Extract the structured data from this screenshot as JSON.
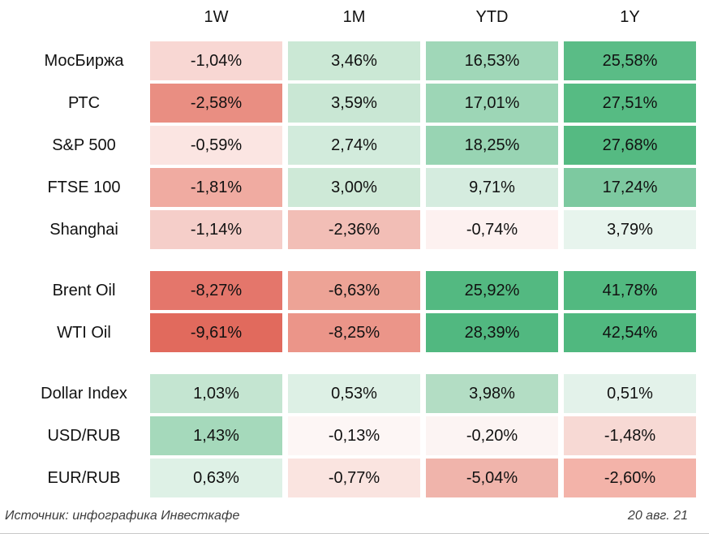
{
  "table": {
    "columns": [
      "1W",
      "1M",
      "YTD",
      "1Y"
    ],
    "groups": [
      {
        "rows": [
          {
            "label": "МосБиржа",
            "cells": [
              {
                "value": "-1,04%",
                "bg": "#f8d7d3"
              },
              {
                "value": "3,46%",
                "bg": "#cbe8d5"
              },
              {
                "value": "16,53%",
                "bg": "#a0d7b8"
              },
              {
                "value": "25,58%",
                "bg": "#5abc86"
              }
            ]
          },
          {
            "label": "РТС",
            "cells": [
              {
                "value": "-2,58%",
                "bg": "#e98e82"
              },
              {
                "value": "3,59%",
                "bg": "#c9e7d4"
              },
              {
                "value": "17,01%",
                "bg": "#9dd6b6"
              },
              {
                "value": "27,51%",
                "bg": "#56bb83"
              }
            ]
          },
          {
            "label": "S&P 500",
            "cells": [
              {
                "value": "-0,59%",
                "bg": "#fbe5e2"
              },
              {
                "value": "2,74%",
                "bg": "#d2ebdc"
              },
              {
                "value": "18,25%",
                "bg": "#98d4b3"
              },
              {
                "value": "27,68%",
                "bg": "#55ba82"
              }
            ]
          },
          {
            "label": "FTSE 100",
            "cells": [
              {
                "value": "-1,81%",
                "bg": "#f0aba1"
              },
              {
                "value": "3,00%",
                "bg": "#cee9d7"
              },
              {
                "value": "9,71%",
                "bg": "#d5ecdf"
              },
              {
                "value": "17,24%",
                "bg": "#7dc9a0"
              }
            ]
          },
          {
            "label": "Shanghai",
            "cells": [
              {
                "value": "-1,14%",
                "bg": "#f5cec9"
              },
              {
                "value": "-2,36%",
                "bg": "#f2beb6"
              },
              {
                "value": "-0,74%",
                "bg": "#fdf1f0"
              },
              {
                "value": "3,79%",
                "bg": "#e7f4ed"
              }
            ]
          }
        ]
      },
      {
        "rows": [
          {
            "label": "Brent Oil",
            "cells": [
              {
                "value": "-8,27%",
                "bg": "#e4766b"
              },
              {
                "value": "-6,63%",
                "bg": "#eda396"
              },
              {
                "value": "25,92%",
                "bg": "#53b981"
              },
              {
                "value": "41,78%",
                "bg": "#52b980"
              }
            ]
          },
          {
            "label": "WTI Oil",
            "cells": [
              {
                "value": "-9,61%",
                "bg": "#e16a5d"
              },
              {
                "value": "-8,25%",
                "bg": "#eb9589"
              },
              {
                "value": "28,39%",
                "bg": "#51b880"
              },
              {
                "value": "42,54%",
                "bg": "#50b87f"
              }
            ]
          }
        ]
      },
      {
        "rows": [
          {
            "label": "Dollar Index",
            "cells": [
              {
                "value": "1,03%",
                "bg": "#c4e5d1"
              },
              {
                "value": "0,53%",
                "bg": "#ddf0e5"
              },
              {
                "value": "3,98%",
                "bg": "#b3ddc4"
              },
              {
                "value": "0,51%",
                "bg": "#e3f2ea"
              }
            ]
          },
          {
            "label": "USD/RUB",
            "cells": [
              {
                "value": "1,43%",
                "bg": "#a5d9bb"
              },
              {
                "value": "-0,13%",
                "bg": "#fdf6f5"
              },
              {
                "value": "-0,20%",
                "bg": "#fcf4f3"
              },
              {
                "value": "-1,48%",
                "bg": "#f7d9d4"
              }
            ]
          },
          {
            "label": "EUR/RUB",
            "cells": [
              {
                "value": "0,63%",
                "bg": "#def1e6"
              },
              {
                "value": "-0,77%",
                "bg": "#fae4e0"
              },
              {
                "value": "-5,04%",
                "bg": "#f0b4ab"
              },
              {
                "value": "-2,60%",
                "bg": "#f3b3a9"
              }
            ]
          }
        ]
      }
    ]
  },
  "footer": {
    "source": "Источник: инфографика Инвесткафе",
    "date": "20 авг. 21"
  },
  "chart_data": {
    "type": "heatmap",
    "columns": [
      "1W",
      "1M",
      "YTD",
      "1Y"
    ],
    "rows": [
      "МосБиржа",
      "РТС",
      "S&P 500",
      "FTSE 100",
      "Shanghai",
      "Brent Oil",
      "WTI Oil",
      "Dollar Index",
      "USD/RUB",
      "EUR/RUB"
    ],
    "row_groups": [
      [
        "МосБиржа",
        "РТС",
        "S&P 500",
        "FTSE 100",
        "Shanghai"
      ],
      [
        "Brent Oil",
        "WTI Oil"
      ],
      [
        "Dollar Index",
        "USD/RUB",
        "EUR/RUB"
      ]
    ],
    "values_percent": [
      [
        -1.04,
        3.46,
        16.53,
        25.58
      ],
      [
        -2.58,
        3.59,
        17.01,
        27.51
      ],
      [
        -0.59,
        2.74,
        18.25,
        27.68
      ],
      [
        -1.81,
        3.0,
        9.71,
        17.24
      ],
      [
        -1.14,
        -2.36,
        -0.74,
        3.79
      ],
      [
        -8.27,
        -6.63,
        25.92,
        41.78
      ],
      [
        -9.61,
        -8.25,
        28.39,
        42.54
      ],
      [
        1.03,
        0.53,
        3.98,
        0.51
      ],
      [
        1.43,
        -0.13,
        -0.2,
        -1.48
      ],
      [
        0.63,
        -0.77,
        -5.04,
        -2.6
      ]
    ],
    "colormap": {
      "negative_max": "#e16a5d",
      "zero": "#ffffff",
      "positive_max": "#4fb87e"
    },
    "legend_position": "none",
    "grid": false
  }
}
